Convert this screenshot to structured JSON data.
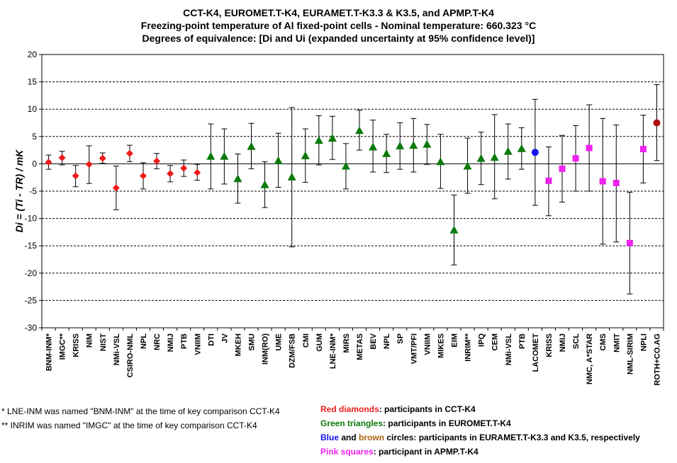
{
  "chart_data": {
    "type": "scatter",
    "title": "CCT-K4, EUROMET.T-K4, EURAMET.T-K3.3 & K3.5, and APMP.T-K4",
    "subtitle": "Freezing-point temperature of Al fixed-point cells - Nominal temperature: 660.323 °C",
    "subtitle2": "Degrees of equivalence: [Di and Ui (expanded uncertainty at 95% confidence level)]",
    "ylabel": "Di = (Ti - TR) / mK",
    "ylim": [
      -30,
      20
    ],
    "yticks": [
      -30,
      -25,
      -20,
      -15,
      -10,
      -5,
      0,
      5,
      10,
      15,
      20
    ],
    "grid": true,
    "series": [
      {
        "marker": "diamond",
        "color": "#ee1c1c",
        "points": [
          {
            "label": "BNM-INM*",
            "y": 0.3,
            "lo": -1.0,
            "hi": 1.6
          },
          {
            "label": "IMGC**",
            "y": 1.1,
            "lo": -0.2,
            "hi": 2.3
          },
          {
            "label": "KRISS",
            "y": -2.2,
            "lo": -4.2,
            "hi": -0.3
          },
          {
            "label": "NIM",
            "y": -0.1,
            "lo": -3.6,
            "hi": 3.3
          },
          {
            "label": "NIST",
            "y": 1.0,
            "lo": 0.1,
            "hi": 2.0
          },
          {
            "label": "NMi-VSL",
            "y": -4.4,
            "lo": -8.4,
            "hi": -0.4
          },
          {
            "label": "CSIRO-NML",
            "y": 1.9,
            "lo": 0.4,
            "hi": 3.4
          },
          {
            "label": "NPL",
            "y": -2.2,
            "lo": -4.6,
            "hi": 0.2
          },
          {
            "label": "NRC",
            "y": 0.5,
            "lo": -0.9,
            "hi": 1.9
          },
          {
            "label": "NMIJ",
            "y": -1.8,
            "lo": -3.3,
            "hi": -0.3
          },
          {
            "label": "PTB",
            "y": -0.8,
            "lo": -2.3,
            "hi": 0.7
          },
          {
            "label": "VNIIM",
            "y": -1.6,
            "lo": -3.0,
            "hi": -0.1
          }
        ]
      },
      {
        "marker": "triangle",
        "color": "#0b7a0b",
        "points": [
          {
            "label": "DTI",
            "y": 1.4,
            "lo": -4.6,
            "hi": 7.3
          },
          {
            "label": "JV",
            "y": 1.4,
            "lo": -3.7,
            "hi": 6.4
          },
          {
            "label": "MKEH",
            "y": -2.7,
            "lo": -7.2,
            "hi": 1.8
          },
          {
            "label": "SMU",
            "y": 3.2,
            "lo": -0.9,
            "hi": 7.4
          },
          {
            "label": "INM(RO)",
            "y": -3.8,
            "lo": -8.0,
            "hi": 0.4
          },
          {
            "label": "UME",
            "y": 0.6,
            "lo": -4.3,
            "hi": 5.6
          },
          {
            "label": "DZM/FSB",
            "y": -2.4,
            "lo": -15.2,
            "hi": 10.3
          },
          {
            "label": "CMI",
            "y": 1.5,
            "lo": -3.4,
            "hi": 6.4
          },
          {
            "label": "GUM",
            "y": 4.3,
            "lo": -0.2,
            "hi": 8.8
          },
          {
            "label": "LNE-INM*",
            "y": 4.7,
            "lo": 0.8,
            "hi": 8.7
          },
          {
            "label": "MIRS",
            "y": -0.4,
            "lo": -4.6,
            "hi": 3.7
          },
          {
            "label": "METAS",
            "y": 6.1,
            "lo": 2.5,
            "hi": 9.8
          },
          {
            "label": "BEV",
            "y": 3.1,
            "lo": -1.5,
            "hi": 8.0
          },
          {
            "label": "NPL",
            "y": 1.9,
            "lo": -1.6,
            "hi": 5.4
          },
          {
            "label": "SP",
            "y": 3.3,
            "lo": -1.0,
            "hi": 7.5
          },
          {
            "label": "VMT/PFI",
            "y": 3.4,
            "lo": -1.5,
            "hi": 8.3
          },
          {
            "label": "VNIIM",
            "y": 3.6,
            "lo": -0.1,
            "hi": 7.2
          },
          {
            "label": "MIKES",
            "y": 0.4,
            "lo": -4.5,
            "hi": 5.4
          },
          {
            "label": "EIM",
            "y": -12.1,
            "lo": -18.5,
            "hi": -5.7
          },
          {
            "label": "INRIM**",
            "y": -0.4,
            "lo": -5.4,
            "hi": 4.7
          },
          {
            "label": "IPQ",
            "y": 1.0,
            "lo": -3.8,
            "hi": 5.8
          },
          {
            "label": "CEM",
            "y": 1.2,
            "lo": -6.4,
            "hi": 9.0
          },
          {
            "label": "NMi-VSL",
            "y": 2.3,
            "lo": -2.8,
            "hi": 7.3
          },
          {
            "label": "PTB",
            "y": 2.8,
            "lo": -1.0,
            "hi": 6.6
          }
        ]
      },
      {
        "marker": "circle",
        "color": "#1515ee",
        "points": [
          {
            "label": "LACOMET",
            "y": 2.1,
            "lo": -7.6,
            "hi": 11.8
          }
        ]
      },
      {
        "marker": "square",
        "color": "#ee22ee",
        "points": [
          {
            "label": "KRISS",
            "y": -3.1,
            "lo": -9.5,
            "hi": 3.1
          },
          {
            "label": "NMIJ",
            "y": -0.9,
            "lo": -7.0,
            "hi": 5.2
          },
          {
            "label": "SCL",
            "y": 1.0,
            "lo": -5.0,
            "hi": 7.0
          },
          {
            "label": "NMC, A*STAR",
            "y": 2.9,
            "lo": -5.0,
            "hi": 10.8
          },
          {
            "label": "CMS",
            "y": -3.2,
            "lo": -14.7,
            "hi": 8.3
          },
          {
            "label": "NMIT",
            "y": -3.5,
            "lo": -14.3,
            "hi": 7.1
          },
          {
            "label": "NML-SIRIM",
            "y": -14.5,
            "lo": -23.8,
            "hi": -5.2
          },
          {
            "label": "NPLI",
            "y": 2.7,
            "lo": -3.5,
            "hi": 8.9
          }
        ]
      },
      {
        "marker": "circle",
        "color": "#b01010",
        "points": [
          {
            "label": "ROTH+CO.AG",
            "y": 7.5,
            "lo": 0.6,
            "hi": 14.5
          }
        ]
      }
    ]
  },
  "footnotes": [
    "* LNE-INM was named \"BNM-INM\" at the time of key comparison CCT-K4",
    "** INRIM was named \"IMGC\" at the time of key comparison CCT-K4"
  ],
  "legend": [
    {
      "parts": [
        {
          "text": "Red diamonds",
          "color": "#ee1c1c"
        },
        {
          "text": ": participants in CCT-K4",
          "color": "#000000"
        }
      ]
    },
    {
      "parts": [
        {
          "text": "Green triangles",
          "color": "#0b7a0b"
        },
        {
          "text": ": participants in EUROMET.T-K4",
          "color": "#000000"
        }
      ]
    },
    {
      "parts": [
        {
          "text": "Blue",
          "color": "#1515ee"
        },
        {
          "text": " and ",
          "color": "#000000"
        },
        {
          "text": "brown",
          "color": "#b06010"
        },
        {
          "text": " circles: participants in EURAMET.T-K3.3 and K3.5, respectively",
          "color": "#000000"
        }
      ]
    },
    {
      "parts": [
        {
          "text": "Pink squares",
          "color": "#ee22ee"
        },
        {
          "text": ": participant in APMP.T-K4",
          "color": "#000000"
        }
      ]
    }
  ]
}
